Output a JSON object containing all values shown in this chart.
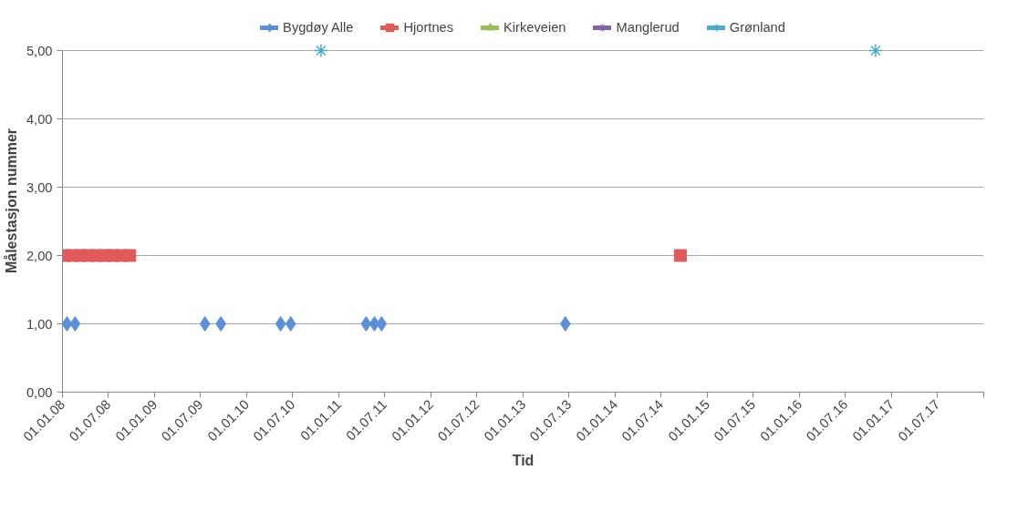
{
  "chart_data": {
    "type": "scatter",
    "xlabel": "Tid",
    "ylabel": "Målestasjon nummer",
    "xlim": [
      "2008-01-01",
      "2018-01-01"
    ],
    "xticks": [
      {
        "value": "2008-01-01",
        "label": "01.01.08"
      },
      {
        "value": "2008-07-01",
        "label": "01.07.08"
      },
      {
        "value": "2009-01-01",
        "label": "01.01.09"
      },
      {
        "value": "2009-07-01",
        "label": "01.07.09"
      },
      {
        "value": "2010-01-01",
        "label": "01.01.10"
      },
      {
        "value": "2010-07-01",
        "label": "01.07.10"
      },
      {
        "value": "2011-01-01",
        "label": "01.01.11"
      },
      {
        "value": "2011-07-01",
        "label": "01.07.11"
      },
      {
        "value": "2012-01-01",
        "label": "01.01.12"
      },
      {
        "value": "2012-07-01",
        "label": "01.07.12"
      },
      {
        "value": "2013-01-01",
        "label": "01.01.13"
      },
      {
        "value": "2013-07-01",
        "label": "01.07.13"
      },
      {
        "value": "2014-01-01",
        "label": "01.01.14"
      },
      {
        "value": "2014-07-01",
        "label": "01.07.14"
      },
      {
        "value": "2015-01-01",
        "label": "01.01.15"
      },
      {
        "value": "2015-07-01",
        "label": "01.07.15"
      },
      {
        "value": "2016-01-01",
        "label": "01.01.16"
      },
      {
        "value": "2016-07-01",
        "label": "01.07.16"
      },
      {
        "value": "2017-01-01",
        "label": "01.01.17"
      },
      {
        "value": "2017-07-01",
        "label": "01.07.17"
      },
      {
        "value": "2018-01-01",
        "label": null
      }
    ],
    "ylim": [
      0,
      5
    ],
    "yticks": [
      {
        "value": 0,
        "label": "0,00"
      },
      {
        "value": 1,
        "label": "1,00"
      },
      {
        "value": 2,
        "label": "2,00"
      },
      {
        "value": 3,
        "label": "3,00"
      },
      {
        "value": 4,
        "label": "4,00"
      },
      {
        "value": 5,
        "label": "5,00"
      }
    ],
    "grid": "y",
    "legend": "top",
    "series": [
      {
        "name": "Bygdøy Alle",
        "color": "#5b8fd9",
        "marker": "diamond",
        "x": [
          "2008-01-19",
          "2008-02-20",
          "2009-07-19",
          "2009-09-20",
          "2010-05-15",
          "2010-06-24",
          "2011-04-19",
          "2011-05-22",
          "2011-06-19",
          "2013-06-17"
        ],
        "values": [
          1,
          1,
          1,
          1,
          1,
          1,
          1,
          1,
          1,
          1
        ]
      },
      {
        "name": "Hjortnes",
        "color": "#e05a5a",
        "marker": "square",
        "x": [
          "2008-01-08",
          "2008-02-09",
          "2008-03-12",
          "2008-04-13",
          "2008-05-15",
          "2008-06-16",
          "2008-07-18",
          "2008-08-20",
          "2008-09-24",
          "2014-09-16"
        ],
        "values": [
          2,
          2,
          2,
          2,
          2,
          2,
          2,
          2,
          2,
          2
        ]
      },
      {
        "name": "Kirkeveien",
        "color": "#9bbb59",
        "marker": "triangle"
      },
      {
        "name": "Manglerud",
        "color": "#8064a2",
        "marker": "cross"
      },
      {
        "name": "Grønland",
        "color": "#4bacc6",
        "marker": "cross",
        "x": [
          "2010-10-22",
          "2016-10-29"
        ],
        "values": [
          5,
          5
        ]
      }
    ]
  }
}
